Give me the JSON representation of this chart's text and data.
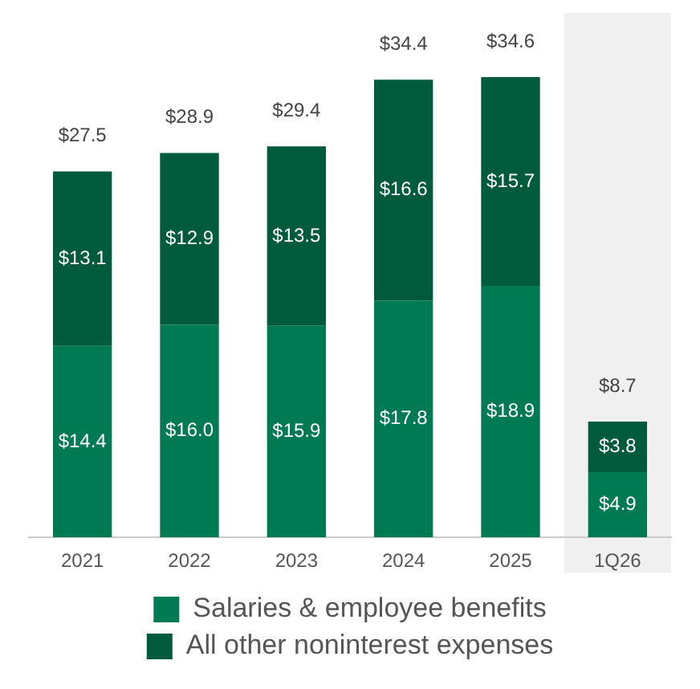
{
  "chart_data": {
    "type": "bar",
    "stacked": true,
    "categories": [
      "2021",
      "2022",
      "2023",
      "2024",
      "2025",
      "1Q26"
    ],
    "series": [
      {
        "name": "Salaries & employee benefits",
        "color": "#007a53",
        "values": [
          14.4,
          16.0,
          15.9,
          17.8,
          18.9,
          4.9
        ],
        "value_labels": [
          "$14.4",
          "$16.0",
          "$15.9",
          "$17.8",
          "$18.9",
          "$4.9"
        ]
      },
      {
        "name": "All other noninterest expenses",
        "color": "#005a3c",
        "values": [
          13.1,
          12.9,
          13.5,
          16.6,
          15.7,
          3.8
        ],
        "value_labels": [
          "$13.1",
          "$12.9",
          "$13.5",
          "$16.6",
          "$15.7",
          "$3.8"
        ]
      }
    ],
    "totals": [
      "$27.5",
      "$28.9",
      "$29.4",
      "$34.4",
      "$34.6",
      "$8.7"
    ],
    "tick_labels": "x",
    "grid": false,
    "legend": "bottom",
    "bands": [
      {
        "axis": "x",
        "from": "1Q26",
        "to": "1Q26",
        "color": "#f0f0f0"
      }
    ]
  }
}
